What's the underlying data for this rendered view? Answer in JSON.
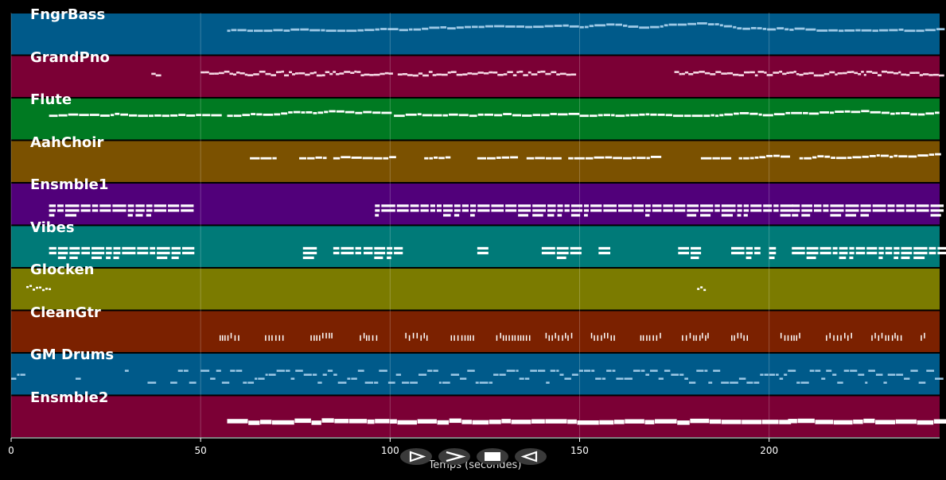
{
  "chart_data": {
    "type": "piano-roll",
    "xlabel": "Temps (secondes)",
    "xlim": [
      0,
      245
    ],
    "xticks": [
      0,
      50,
      100,
      150,
      200
    ],
    "grid": true,
    "tracks": [
      {
        "name": "FngrBass",
        "color": "#005a8a",
        "note_color": "#9ec9e6",
        "segments": [
          [
            57,
            245
          ]
        ],
        "style": "line"
      },
      {
        "name": "GrandPno",
        "color": "#7b0035",
        "note_color": "#f4d6e2",
        "segments": [
          [
            37,
            39
          ],
          [
            50,
            100
          ],
          [
            102,
            149
          ],
          [
            175,
            245
          ]
        ],
        "style": "dense"
      },
      {
        "name": "Flute",
        "color": "#007a22",
        "note_color": "#ffffff",
        "segments": [
          [
            10,
            55
          ],
          [
            57,
            100
          ],
          [
            101,
            149
          ],
          [
            150,
            245
          ]
        ],
        "style": "line"
      },
      {
        "name": "AahChoir",
        "color": "#7b5100",
        "note_color": "#ffffff",
        "segments": [
          [
            63,
            70
          ],
          [
            76,
            83
          ],
          [
            85,
            100
          ],
          [
            109,
            115
          ],
          [
            123,
            132
          ],
          [
            136,
            145
          ],
          [
            147,
            170
          ],
          [
            182,
            190
          ],
          [
            192,
            205
          ],
          [
            208,
            245
          ]
        ],
        "style": "line"
      },
      {
        "name": "Ensmble1",
        "color": "#51007a",
        "note_color": "#ffffff",
        "segments": [
          [
            10,
            46
          ],
          [
            96,
            205
          ],
          [
            206,
            245
          ]
        ],
        "style": "chord"
      },
      {
        "name": "Vibes",
        "color": "#007a78",
        "note_color": "#ffffff",
        "segments": [
          [
            10,
            46
          ],
          [
            77,
            79
          ],
          [
            85,
            92
          ],
          [
            93,
            102
          ],
          [
            123,
            125
          ],
          [
            140,
            150
          ],
          [
            155,
            157
          ],
          [
            176,
            182
          ],
          [
            190,
            198
          ],
          [
            200,
            202
          ],
          [
            206,
            245
          ]
        ],
        "style": "chord"
      },
      {
        "name": "Glocken",
        "color": "#7b7b00",
        "note_color": "#ffffff",
        "segments": [
          [
            4,
            10
          ],
          [
            181,
            183
          ]
        ],
        "style": "sparse"
      },
      {
        "name": "CleanGtr",
        "color": "#7b2100",
        "note_color": "#ffffff",
        "segments": [
          [
            55,
            60
          ],
          [
            67,
            72
          ],
          [
            79,
            85
          ],
          [
            92,
            97
          ],
          [
            104,
            110
          ],
          [
            116,
            122
          ],
          [
            128,
            137
          ],
          [
            141,
            148
          ],
          [
            153,
            159
          ],
          [
            166,
            172
          ],
          [
            177,
            184
          ],
          [
            190,
            195
          ],
          [
            203,
            208
          ],
          [
            215,
            222
          ],
          [
            227,
            235
          ],
          [
            240,
            241
          ]
        ],
        "style": "dots"
      },
      {
        "name": "GM Drums",
        "color": "#005a8a",
        "note_color": "#9ec9e6",
        "segments": [
          [
            0,
            3
          ],
          [
            17,
            18
          ],
          [
            30,
            31
          ],
          [
            36,
            38
          ],
          [
            42,
            47
          ],
          [
            50,
            245
          ]
        ],
        "style": "drums"
      },
      {
        "name": "Ensmble2",
        "color": "#7b0035",
        "note_color": "#ffffff",
        "segments": [
          [
            57,
            204
          ],
          [
            205,
            245
          ]
        ],
        "style": "thick"
      }
    ]
  },
  "controls": {
    "play_icon": "play-icon",
    "forward_icon": "forward-icon",
    "stop_icon": "stop-icon",
    "back_icon": "back-icon"
  }
}
